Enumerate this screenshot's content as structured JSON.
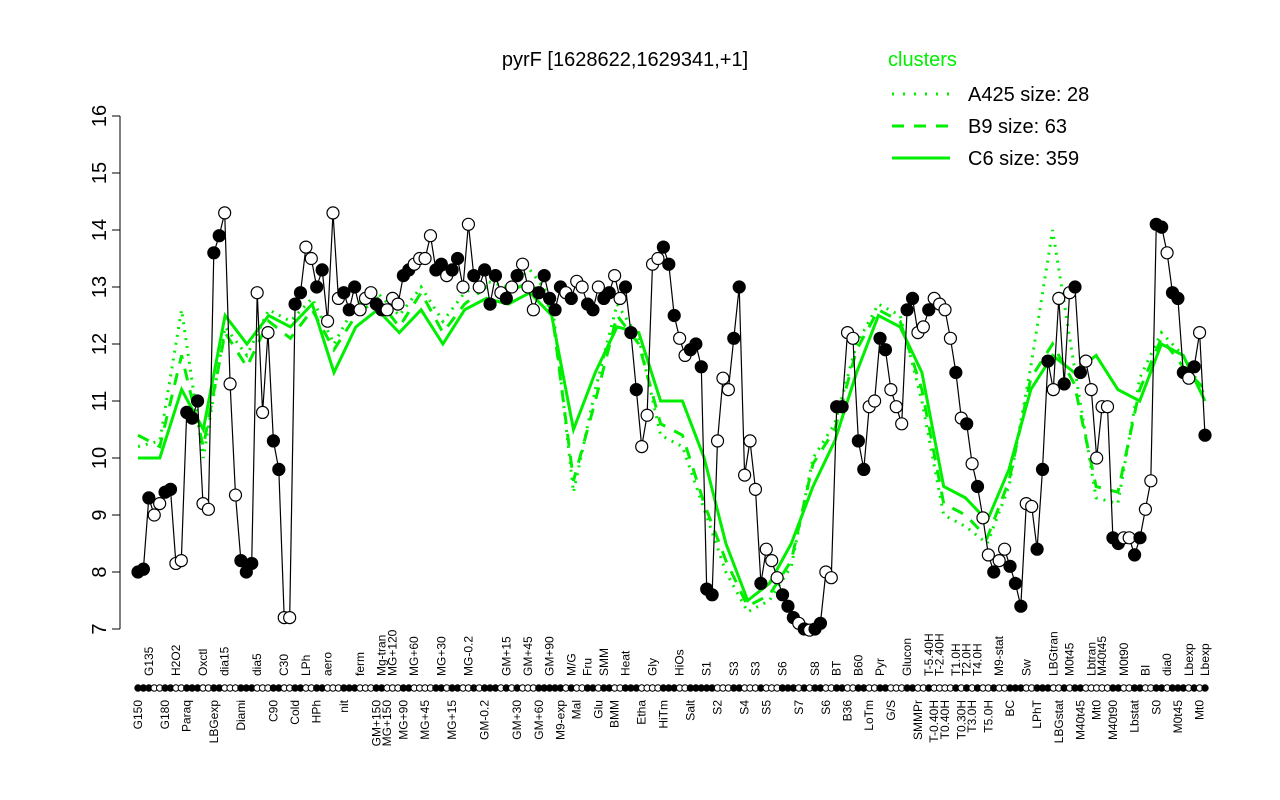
{
  "chart_data": {
    "type": "line",
    "title": "pyrF [1628622,1629341,+1]",
    "xlabel": "",
    "ylabel": "",
    "ylim": [
      7,
      16
    ],
    "yticks": [
      7,
      8,
      9,
      10,
      11,
      12,
      13,
      14,
      15,
      16
    ],
    "grid": false,
    "legend": {
      "title": "clusters",
      "placement": "top-right",
      "color": "#00ee00",
      "entries": [
        {
          "label": "A425 size: 28",
          "style": "dotted"
        },
        {
          "label": "B9 size: 63",
          "style": "dashed"
        },
        {
          "label": "C6 size: 359",
          "style": "solid"
        }
      ]
    },
    "colors": {
      "points": "#000000",
      "clusters": "#00ee00"
    },
    "points": [
      [
        "G150",
        8.0,
        1
      ],
      [
        "",
        8.05,
        1
      ],
      [
        "G135",
        9.3,
        1
      ],
      [
        "",
        9.0,
        0
      ],
      [
        "",
        9.2,
        0
      ],
      [
        "G180",
        9.4,
        1
      ],
      [
        "",
        9.45,
        1
      ],
      [
        "H2O2",
        8.15,
        0
      ],
      [
        "",
        8.2,
        0
      ],
      [
        "Paraq",
        10.8,
        1
      ],
      [
        "",
        10.7,
        1
      ],
      [
        "",
        11.0,
        1
      ],
      [
        "Oxctl",
        9.2,
        0
      ],
      [
        "",
        9.1,
        0
      ],
      [
        "LBGexp",
        13.6,
        1
      ],
      [
        "",
        13.9,
        1
      ],
      [
        "dia15",
        14.3,
        0
      ],
      [
        "",
        11.3,
        0
      ],
      [
        "",
        9.35,
        0
      ],
      [
        "Diami",
        8.2,
        1
      ],
      [
        "",
        8.0,
        1
      ],
      [
        "",
        8.15,
        1
      ],
      [
        "dia5",
        12.9,
        0
      ],
      [
        "",
        10.8,
        0
      ],
      [
        "",
        12.2,
        0
      ],
      [
        "C90",
        10.3,
        1
      ],
      [
        "",
        9.8,
        1
      ],
      [
        "C30",
        7.2,
        0
      ],
      [
        "",
        7.2,
        0
      ],
      [
        "Cold",
        12.7,
        1
      ],
      [
        "",
        12.9,
        1
      ],
      [
        "LPh",
        13.7,
        0
      ],
      [
        "",
        13.5,
        0
      ],
      [
        "HPh",
        13.0,
        1
      ],
      [
        "",
        13.3,
        1
      ],
      [
        "aero",
        12.4,
        0
      ],
      [
        "",
        14.3,
        0
      ],
      [
        "",
        12.8,
        0
      ],
      [
        "nit",
        12.9,
        1
      ],
      [
        "",
        12.6,
        1
      ],
      [
        "",
        13.0,
        1
      ],
      [
        "ferm",
        12.6,
        0
      ],
      [
        "",
        12.8,
        0
      ],
      [
        "",
        12.9,
        0
      ],
      [
        "GM+150",
        12.7,
        1
      ],
      [
        "Mg-tran",
        12.6,
        1
      ],
      [
        "MG+150",
        12.6,
        0
      ],
      [
        "MG+120",
        12.8,
        0
      ],
      [
        "",
        12.7,
        0
      ],
      [
        "MG+90",
        13.2,
        1
      ],
      [
        "",
        13.3,
        1
      ],
      [
        "MG+60",
        13.4,
        0
      ],
      [
        "",
        13.5,
        0
      ],
      [
        "MG+45",
        13.5,
        0
      ],
      [
        "",
        13.9,
        0
      ],
      [
        "",
        13.3,
        1
      ],
      [
        "MG+30",
        13.4,
        1
      ],
      [
        "",
        13.2,
        0
      ],
      [
        "MG+15",
        13.3,
        1
      ],
      [
        "",
        13.5,
        1
      ],
      [
        "",
        13.0,
        0
      ],
      [
        "MG-0.2",
        14.1,
        0
      ],
      [
        "",
        13.2,
        1
      ],
      [
        "",
        13.0,
        0
      ],
      [
        "GM-0.2",
        13.3,
        1
      ],
      [
        "",
        12.7,
        1
      ],
      [
        "",
        13.2,
        1
      ],
      [
        "",
        12.9,
        0
      ],
      [
        "GM+15",
        12.8,
        1
      ],
      [
        "",
        13.0,
        0
      ],
      [
        "GM+30",
        13.2,
        1
      ],
      [
        "",
        13.4,
        0
      ],
      [
        "GM+45",
        13.0,
        0
      ],
      [
        "",
        12.6,
        0
      ],
      [
        "GM+60",
        12.9,
        1
      ],
      [
        "",
        13.2,
        1
      ],
      [
        "GM+90",
        12.8,
        1
      ],
      [
        "",
        12.6,
        1
      ],
      [
        "M9-exp",
        13.0,
        1
      ],
      [
        "",
        12.9,
        0
      ],
      [
        "M/G",
        12.8,
        1
      ],
      [
        "Mal",
        13.1,
        0
      ],
      [
        "",
        13.0,
        0
      ],
      [
        "Fru",
        12.7,
        1
      ],
      [
        "",
        12.6,
        1
      ],
      [
        "Glu",
        13.0,
        0
      ],
      [
        "SMM",
        12.8,
        1
      ],
      [
        "",
        12.9,
        1
      ],
      [
        "BMM",
        13.2,
        0
      ],
      [
        "",
        12.8,
        0
      ],
      [
        "Heat",
        13.0,
        1
      ],
      [
        "",
        12.2,
        1
      ],
      [
        "",
        11.2,
        1
      ],
      [
        "Etha",
        10.2,
        0
      ],
      [
        "",
        10.75,
        0
      ],
      [
        "Gly",
        13.4,
        0
      ],
      [
        "",
        13.5,
        0
      ],
      [
        "HiTm",
        13.7,
        1
      ],
      [
        "",
        13.4,
        1
      ],
      [
        "",
        12.5,
        1
      ],
      [
        "HiOs",
        12.1,
        0
      ],
      [
        "",
        11.8,
        0
      ],
      [
        "Salt",
        11.9,
        1
      ],
      [
        "",
        12.0,
        1
      ],
      [
        "",
        11.6,
        1
      ],
      [
        "S1",
        7.7,
        1
      ],
      [
        "",
        7.6,
        1
      ],
      [
        "S2",
        10.3,
        0
      ],
      [
        "",
        11.4,
        0
      ],
      [
        "",
        11.2,
        0
      ],
      [
        "S3",
        12.1,
        1
      ],
      [
        "",
        13.0,
        1
      ],
      [
        "S4",
        9.7,
        0
      ],
      [
        "",
        10.3,
        0
      ],
      [
        "S3",
        9.45,
        0
      ],
      [
        "",
        7.8,
        1
      ],
      [
        "S5",
        8.4,
        0
      ],
      [
        "",
        8.2,
        0
      ],
      [
        "",
        7.9,
        0
      ],
      [
        "S6",
        7.6,
        1
      ],
      [
        "",
        7.4,
        1
      ],
      [
        "",
        7.2,
        1
      ],
      [
        "S7",
        7.1,
        0
      ],
      [
        "",
        7.0,
        1
      ],
      [
        "",
        6.98,
        0
      ],
      [
        "S8",
        7.0,
        1
      ],
      [
        "",
        7.1,
        1
      ],
      [
        "S6",
        8.0,
        0
      ],
      [
        "",
        7.9,
        0
      ],
      [
        "BT",
        10.9,
        1
      ],
      [
        "",
        10.9,
        1
      ],
      [
        "B36",
        12.2,
        0
      ],
      [
        "",
        12.1,
        0
      ],
      [
        "B60",
        10.3,
        1
      ],
      [
        "",
        9.8,
        1
      ],
      [
        "LoTm",
        10.9,
        0
      ],
      [
        "",
        11.0,
        0
      ],
      [
        "Pyr",
        12.1,
        1
      ],
      [
        "",
        11.9,
        1
      ],
      [
        "G/S",
        11.2,
        0
      ],
      [
        "",
        10.9,
        0
      ],
      [
        "",
        10.6,
        0
      ],
      [
        "Glucon",
        12.6,
        1
      ],
      [
        "",
        12.8,
        1
      ],
      [
        "SMMPr",
        12.2,
        0
      ],
      [
        "",
        12.3,
        0
      ],
      [
        "T-5.40H",
        12.6,
        1
      ],
      [
        "T-0.40H",
        12.8,
        0
      ],
      [
        "T-2.40H",
        12.7,
        0
      ],
      [
        "T0.40H",
        12.6,
        0
      ],
      [
        "",
        12.1,
        0
      ],
      [
        "T1.0H",
        11.5,
        1
      ],
      [
        "T0.30H",
        10.7,
        0
      ],
      [
        "T2.0H",
        10.6,
        1
      ],
      [
        "T3.0H",
        9.9,
        0
      ],
      [
        "T4.0H",
        9.5,
        1
      ],
      [
        "",
        8.95,
        0
      ],
      [
        "T5.0H",
        8.3,
        0
      ],
      [
        "",
        8.0,
        1
      ],
      [
        "M9-stat",
        8.2,
        0
      ],
      [
        "",
        8.4,
        0
      ],
      [
        "BC",
        8.1,
        1
      ],
      [
        "",
        7.8,
        1
      ],
      [
        "",
        7.4,
        1
      ],
      [
        "Sw",
        9.2,
        0
      ],
      [
        "",
        9.15,
        0
      ],
      [
        "LPhT",
        8.4,
        1
      ],
      [
        "",
        9.8,
        1
      ],
      [
        "",
        11.7,
        1
      ],
      [
        "LBGtran",
        11.2,
        0
      ],
      [
        "LBGstat",
        12.8,
        0
      ],
      [
        "",
        11.3,
        1
      ],
      [
        "M0t45",
        12.9,
        0
      ],
      [
        "",
        13.0,
        1
      ],
      [
        "M40t45",
        11.5,
        1
      ],
      [
        "",
        11.7,
        0
      ],
      [
        "Lbtran",
        11.2,
        0
      ],
      [
        "Mt0",
        10.0,
        0
      ],
      [
        "M40t45",
        10.9,
        0
      ],
      [
        "",
        10.9,
        0
      ],
      [
        "M40t90",
        8.6,
        1
      ],
      [
        "",
        8.5,
        1
      ],
      [
        "M0t90",
        8.6,
        0
      ],
      [
        "",
        8.6,
        0
      ],
      [
        "Lbstat",
        8.3,
        1
      ],
      [
        "",
        8.6,
        1
      ],
      [
        "BI",
        9.1,
        0
      ],
      [
        "",
        9.6,
        0
      ],
      [
        "S0",
        14.1,
        1
      ],
      [
        "",
        14.05,
        1
      ],
      [
        "dia0",
        13.6,
        0
      ],
      [
        "",
        12.9,
        1
      ],
      [
        "M0t45",
        12.8,
        1
      ],
      [
        "",
        11.5,
        1
      ],
      [
        "Lbexp",
        11.4,
        0
      ],
      [
        "",
        11.6,
        1
      ],
      [
        "Mt0",
        12.2,
        0
      ],
      [
        "Lbexp",
        10.4,
        1
      ]
    ],
    "series": [
      {
        "name": "C6 size: 359",
        "values": [
          10.0,
          10.0,
          11.2,
          10.5,
          12.5,
          12.0,
          12.5,
          12.3,
          12.7,
          11.5,
          12.3,
          12.6,
          12.2,
          12.6,
          12.0,
          12.6,
          12.8,
          12.7,
          12.9,
          12.5,
          10.5,
          11.5,
          12.3,
          12.2,
          11.0,
          11.0,
          10.0,
          8.5,
          7.5,
          7.8,
          8.5,
          9.5,
          10.3,
          11.5,
          12.5,
          12.3,
          11.5,
          9.5,
          9.3,
          8.9,
          9.8,
          11.2,
          11.8,
          11.5,
          11.8,
          11.2,
          11.0,
          12.0,
          11.8,
          11.0
        ]
      },
      {
        "name": "B9 size: 63",
        "values": [
          10.4,
          10.2,
          11.8,
          10.2,
          12.2,
          11.6,
          12.4,
          12.1,
          12.6,
          11.9,
          12.5,
          12.8,
          12.3,
          12.9,
          12.2,
          12.7,
          13.0,
          12.9,
          13.1,
          12.6,
          9.6,
          11.0,
          12.5,
          12.0,
          10.6,
          10.4,
          9.2,
          8.2,
          7.4,
          7.6,
          8.2,
          9.9,
          10.5,
          11.9,
          12.6,
          12.4,
          11.2,
          9.2,
          9.0,
          8.6,
          9.6,
          11.4,
          12.0,
          11.3,
          9.5,
          9.4,
          11.2,
          12.1,
          11.6,
          11.2
        ]
      },
      {
        "name": "A425 size: 28",
        "values": [
          10.2,
          10.3,
          12.6,
          10.0,
          12.3,
          11.8,
          12.6,
          12.4,
          12.8,
          12.0,
          12.7,
          12.9,
          12.5,
          13.0,
          12.4,
          12.9,
          13.1,
          13.0,
          13.3,
          12.8,
          9.4,
          11.2,
          12.7,
          12.1,
          10.4,
          10.2,
          9.1,
          8.0,
          7.3,
          7.5,
          8.1,
          10.0,
          10.6,
          12.0,
          12.7,
          12.5,
          11.0,
          9.0,
          8.8,
          8.5,
          9.5,
          11.6,
          14.0,
          11.6,
          9.3,
          9.2,
          11.4,
          12.2,
          11.8,
          11.1
        ]
      }
    ]
  }
}
